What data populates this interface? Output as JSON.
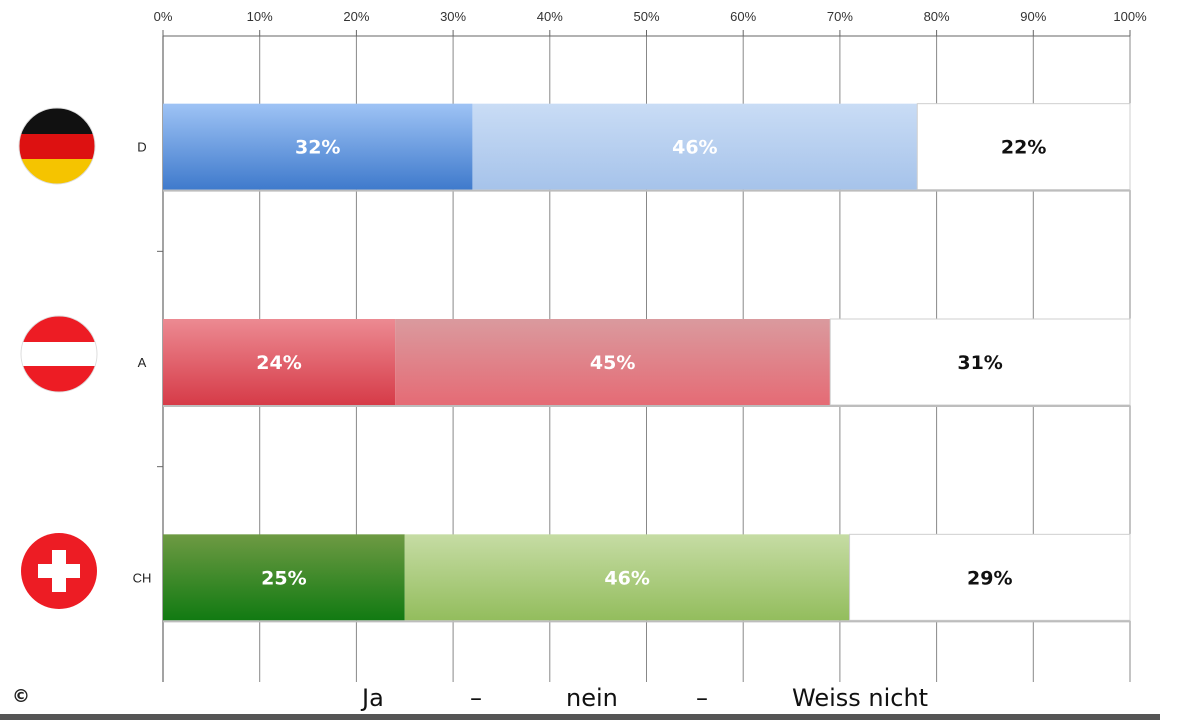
{
  "chart_data": {
    "type": "bar",
    "orientation": "horizontal",
    "stacked": true,
    "percent_axis": true,
    "categories": [
      "D",
      "A",
      "CH"
    ],
    "series": [
      {
        "values": [
          32,
          24,
          25
        ]
      },
      {
        "values": [
          46,
          45,
          46
        ]
      },
      {
        "values": [
          22,
          31,
          29
        ]
      }
    ],
    "data_labels": [
      [
        "32%",
        "46%",
        "22%"
      ],
      [
        "24%",
        "45%",
        "31%"
      ],
      [
        "25%",
        "46%",
        "29%"
      ]
    ],
    "x_ticks": [
      "0%",
      "10%",
      "20%",
      "30%",
      "40%",
      "50%",
      "60%",
      "70%",
      "80%",
      "90%",
      "100%"
    ],
    "xlim": [
      0,
      100
    ],
    "x_axis_position": "top",
    "grid": true,
    "colors": {
      "D": [
        "#4a86d6",
        "#b3cdf0",
        "#ffffff"
      ],
      "A": [
        "#d94a55",
        "#e07e85",
        "#ffffff"
      ],
      "CH": [
        "#2e7d1f",
        "#a8c97a",
        "#ffffff"
      ]
    },
    "flags": [
      "germany-flag-icon",
      "austria-flag-icon",
      "switzerland-flag-icon"
    ]
  },
  "caption": {
    "ja": "Ja",
    "dash1": "–",
    "nein": "nein",
    "dash2": "–",
    "weiss": "Weiss nicht"
  },
  "copyright": "©"
}
